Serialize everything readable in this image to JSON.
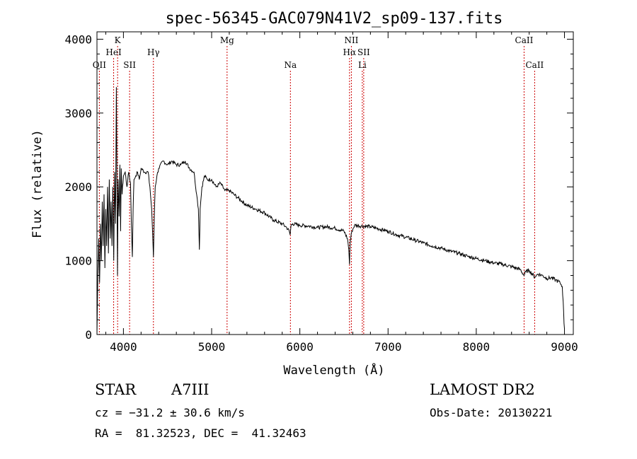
{
  "chart_data": {
    "type": "line",
    "title": "spec-56345-GAC079N41V2_sp09-137.fits",
    "xlabel": "Wavelength (Å)",
    "ylabel": "Flux (relative)",
    "xlim": [
      3700,
      9100
    ],
    "ylim": [
      0,
      4100
    ],
    "xticks": [
      4000,
      5000,
      6000,
      7000,
      8000,
      9000
    ],
    "yticks": [
      0,
      1000,
      2000,
      3000,
      4000
    ],
    "grid": false,
    "line_color": "#000000",
    "marker_color": "#cc0000",
    "series": [
      {
        "x": [
          3700,
          3710,
          3720,
          3730,
          3740,
          3750,
          3760,
          3770,
          3780,
          3790,
          3800,
          3810,
          3820,
          3830,
          3840,
          3850,
          3860,
          3870,
          3880,
          3890,
          3900,
          3910,
          3920,
          3933,
          3940,
          3950,
          3960,
          3968,
          3975,
          3985,
          4000,
          4020,
          4040,
          4060,
          4080,
          4090,
          4101,
          4110,
          4120,
          4140,
          4160,
          4180,
          4200,
          4240,
          4280,
          4300,
          4320,
          4330,
          4340,
          4350,
          4360,
          4380,
          4400,
          4450,
          4500,
          4550,
          4600,
          4650,
          4700,
          4750,
          4800,
          4830,
          4850,
          4861,
          4870,
          4890,
          4920,
          4950,
          5000,
          5050,
          5100,
          5150,
          5200,
          5250,
          5300,
          5400,
          5500,
          5600,
          5700,
          5800,
          5850,
          5880,
          5890,
          5900,
          5920,
          6000,
          6100,
          6200,
          6300,
          6400,
          6500,
          6540,
          6555,
          6563,
          6570,
          6590,
          6620,
          6700,
          6800,
          6900,
          7000,
          7100,
          7200,
          7300,
          7400,
          7500,
          7600,
          7700,
          7800,
          7900,
          8000,
          8100,
          8200,
          8300,
          8400,
          8500,
          8542,
          8560,
          8600,
          8662,
          8700,
          8750,
          8800,
          8850,
          8900,
          8950,
          8975,
          8985,
          8995,
          9000
        ],
        "y": [
          0,
          800,
          1300,
          700,
          1500,
          1000,
          1800,
          1200,
          1900,
          900,
          1700,
          1200,
          2000,
          1100,
          2100,
          1300,
          1800,
          1200,
          2000,
          1000,
          2200,
          1500,
          3350,
          800,
          2100,
          1600,
          2300,
          1400,
          2250,
          1900,
          2150,
          2200,
          2000,
          2200,
          2050,
          1500,
          1050,
          1700,
          2100,
          2150,
          2200,
          2100,
          2250,
          2200,
          2200,
          2000,
          1700,
          1400,
          1050,
          1600,
          2000,
          2150,
          2250,
          2350,
          2300,
          2350,
          2300,
          2300,
          2350,
          2250,
          2200,
          1900,
          1700,
          1150,
          1700,
          2000,
          2150,
          2100,
          2100,
          2000,
          2050,
          1950,
          1950,
          1900,
          1850,
          1750,
          1700,
          1650,
          1550,
          1500,
          1450,
          1400,
          1350,
          1480,
          1500,
          1480,
          1470,
          1450,
          1460,
          1440,
          1400,
          1300,
          1150,
          950,
          1250,
          1400,
          1480,
          1470,
          1460,
          1430,
          1400,
          1350,
          1320,
          1280,
          1240,
          1200,
          1170,
          1130,
          1100,
          1060,
          1030,
          1000,
          970,
          950,
          920,
          880,
          800,
          850,
          870,
          780,
          820,
          800,
          760,
          770,
          740,
          700,
          650,
          450,
          150,
          80
        ]
      }
    ],
    "line_markers": [
      {
        "label": "OII",
        "x": 3727,
        "row": 3
      },
      {
        "label": "K",
        "x": 3934,
        "row": 1
      },
      {
        "label": "HeI",
        "x": 3889,
        "row": 2
      },
      {
        "label": "SII",
        "x": 4070,
        "row": 3
      },
      {
        "label": "Hγ",
        "x": 4340,
        "row": 2
      },
      {
        "label": "Mg",
        "x": 5175,
        "row": 1
      },
      {
        "label": "Na",
        "x": 5893,
        "row": 3
      },
      {
        "label": "NII",
        "x": 6584,
        "row": 1
      },
      {
        "label": "Hα",
        "x": 6563,
        "row": 2
      },
      {
        "label": "SII",
        "x": 6724,
        "row": 2
      },
      {
        "label": "Li",
        "x": 6708,
        "row": 3
      },
      {
        "label": "CaII",
        "x": 8542,
        "row": 1
      },
      {
        "label": "CaII",
        "x": 8662,
        "row": 3
      }
    ]
  },
  "info": {
    "object_class": "STAR",
    "subclass": "A7III",
    "survey": "LAMOST DR2",
    "velocity": "cz = −31.2 ± 30.6 km/s",
    "obs_date": "Obs-Date: 20130221",
    "coords": "RA =  81.32523, DEC =  41.32463"
  }
}
